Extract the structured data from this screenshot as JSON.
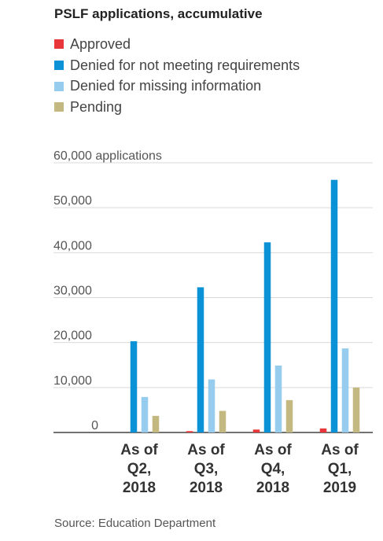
{
  "title": "PSLF applications, accumulative",
  "source": "Source: Education Department",
  "colors": {
    "approved": "#e8353a",
    "denied_requirements": "#0b91d6",
    "denied_missing": "#96cdef",
    "pending": "#c3b87f"
  },
  "chart_data": {
    "type": "bar",
    "title": "PSLF applications, accumulative",
    "categories": [
      [
        "As of",
        "Q2,",
        "2018"
      ],
      [
        "As of",
        "Q3,",
        "2018"
      ],
      [
        "As of",
        "Q4,",
        "2018"
      ],
      [
        "As of",
        "Q1,",
        "2019"
      ]
    ],
    "series": [
      {
        "name": "Approved",
        "color": "#e8353a",
        "values": [
          0,
          300,
          650,
          900
        ]
      },
      {
        "name": "Denied for not meeting requirements",
        "color": "#0b91d6",
        "values": [
          20300,
          32300,
          42300,
          56200
        ]
      },
      {
        "name": "Denied for missing information",
        "color": "#96cdef",
        "values": [
          7900,
          11800,
          14900,
          18700
        ]
      },
      {
        "name": "Pending",
        "color": "#c3b87f",
        "values": [
          3700,
          4800,
          7200,
          10000
        ]
      }
    ],
    "ylim": [
      0,
      60000
    ],
    "yticks": [
      0,
      10000,
      20000,
      30000,
      40000,
      50000,
      60000
    ],
    "ytick_labels": [
      "0",
      "10,000",
      "20,000",
      "30,000",
      "40,000",
      "50,000",
      "60,000"
    ],
    "yunit": "applications",
    "grid": true,
    "legend_position": "top-left"
  }
}
